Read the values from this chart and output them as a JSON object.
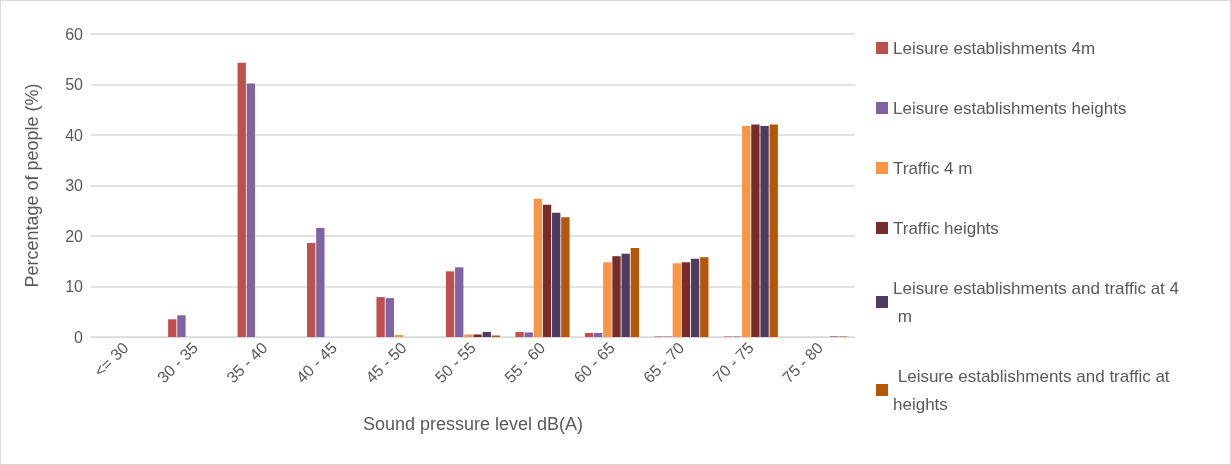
{
  "chart_data": {
    "type": "bar",
    "xlabel": "Sound pressure level dB(A)",
    "ylabel": "Percentage of people (%)",
    "categories": [
      "<= 30",
      "30 - 35",
      "35 - 40",
      "40 - 45",
      "45 - 50",
      "50 - 55",
      "55 - 60",
      "60 - 65",
      "65 - 70",
      "70 - 75",
      "75 - 80"
    ],
    "series": [
      {
        "name": "Leisure establishments 4m",
        "color": "#c0504d",
        "values": [
          0,
          3.5,
          54.3,
          18.6,
          7.9,
          13.0,
          1.0,
          0.8,
          0.1,
          0.1,
          0
        ]
      },
      {
        "name": "Leisure establishments heights",
        "color": "#8064a2",
        "values": [
          0,
          4.3,
          50.2,
          21.6,
          7.7,
          13.8,
          0.9,
          0.8,
          0.1,
          0.1,
          0
        ]
      },
      {
        "name": "Traffic 4 m",
        "color": "#f79646",
        "values": [
          0,
          0,
          0,
          0,
          0.4,
          0.5,
          27.4,
          14.8,
          14.6,
          41.8,
          0
        ]
      },
      {
        "name": "Traffic heights",
        "color": "#772c2a",
        "values": [
          0,
          0,
          0,
          0,
          0,
          0.5,
          26.2,
          16.0,
          14.8,
          42.1,
          0
        ]
      },
      {
        "name": "Leisure establishments and traffic at 4 m",
        "color": "#4d3b62",
        "values": [
          0,
          0,
          0,
          0,
          0,
          1.0,
          24.6,
          16.5,
          15.5,
          41.8,
          0.1
        ]
      },
      {
        "name": " Leisure establishments and traffic at heights",
        "color": "#b65708",
        "values": [
          0,
          0,
          0,
          0,
          0,
          0.3,
          23.7,
          17.6,
          15.8,
          42.1,
          0.1
        ]
      }
    ],
    "ylim": [
      0,
      60
    ],
    "yticks": [
      0,
      10,
      20,
      30,
      40,
      50,
      60
    ],
    "grid": "y",
    "legend": "right"
  }
}
